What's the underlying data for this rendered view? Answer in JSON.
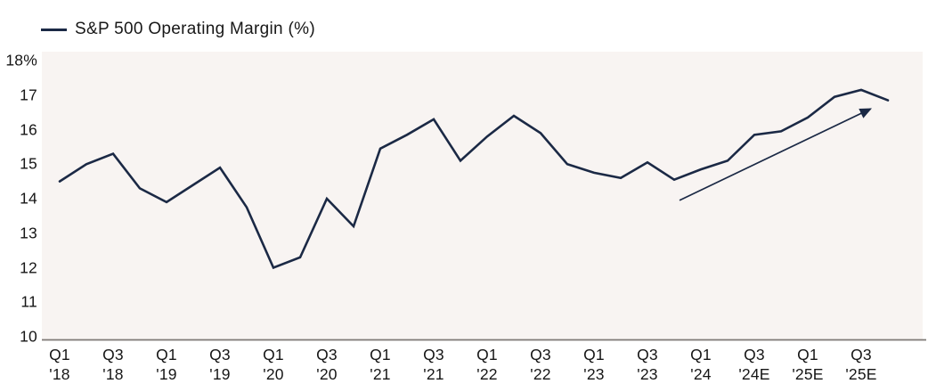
{
  "legend": {
    "label": "S&P 500 Operating Margin (%)"
  },
  "colors": {
    "line": "#1b2945",
    "arrow": "#1b2945",
    "plot_background": "#f8f4f2",
    "axis_line": "#7d7975",
    "text": "#161616"
  },
  "chart_data": {
    "type": "line",
    "title": "S&P 500 Operating Margin (%)",
    "x": [
      "Q1 '18",
      "Q2 '18",
      "Q3 '18",
      "Q4 '18",
      "Q1 '19",
      "Q2 '19",
      "Q3 '19",
      "Q4 '19",
      "Q1 '20",
      "Q2 '20",
      "Q3 '20",
      "Q4 '20",
      "Q1 '21",
      "Q2 '21",
      "Q3 '21",
      "Q4 '21",
      "Q1 '22",
      "Q2 '22",
      "Q3 '22",
      "Q4 '22",
      "Q1 '23",
      "Q2 '23",
      "Q3 '23",
      "Q4 '23",
      "Q1 '24",
      "Q2 '24",
      "Q3 '24E",
      "Q4 '24E",
      "Q1 '25E",
      "Q2 '25E",
      "Q3 '25E",
      "Q4 '25E"
    ],
    "series": [
      {
        "name": "S&P 500 Operating Margin (%)",
        "values": [
          14.5,
          15.0,
          15.3,
          14.3,
          13.9,
          14.4,
          14.9,
          13.75,
          12.0,
          12.3,
          14.0,
          13.2,
          15.45,
          15.85,
          16.3,
          15.1,
          15.8,
          16.4,
          15.9,
          15.0,
          14.75,
          14.6,
          15.05,
          14.55,
          14.85,
          15.1,
          15.85,
          15.95,
          16.35,
          16.95,
          17.15,
          16.85
        ]
      }
    ],
    "ylim": [
      10,
      18
    ],
    "y_ticks": [
      {
        "label": "18%",
        "value": 18
      },
      {
        "label": "17",
        "value": 17
      },
      {
        "label": "16",
        "value": 16
      },
      {
        "label": "15",
        "value": 15
      },
      {
        "label": "14",
        "value": 14
      },
      {
        "label": "13",
        "value": 13
      },
      {
        "label": "12",
        "value": 12
      },
      {
        "label": "11",
        "value": 11
      },
      {
        "label": "10",
        "value": 10
      }
    ],
    "x_ticks": [
      {
        "line1": "Q1",
        "line2": "'18"
      },
      {
        "line1": "Q3",
        "line2": "'18"
      },
      {
        "line1": "Q1",
        "line2": "'19"
      },
      {
        "line1": "Q3",
        "line2": "'19"
      },
      {
        "line1": "Q1",
        "line2": "'20"
      },
      {
        "line1": "Q3",
        "line2": "'20"
      },
      {
        "line1": "Q1",
        "line2": "'21"
      },
      {
        "line1": "Q3",
        "line2": "'21"
      },
      {
        "line1": "Q1",
        "line2": "'22"
      },
      {
        "line1": "Q3",
        "line2": "'22"
      },
      {
        "line1": "Q1",
        "line2": "'23"
      },
      {
        "line1": "Q3",
        "line2": "'23"
      },
      {
        "line1": "Q1",
        "line2": "'24"
      },
      {
        "line1": "Q3",
        "line2": "'24E"
      },
      {
        "line1": "Q1",
        "line2": "'25E"
      },
      {
        "line1": "Q3",
        "line2": "'25E"
      }
    ],
    "grid": false,
    "legend_position": "top-left",
    "annotation_arrow": {
      "from_quarter_index": 23.2,
      "from_value": 13.95,
      "to_quarter_index": 30.35,
      "to_value": 16.6
    }
  }
}
